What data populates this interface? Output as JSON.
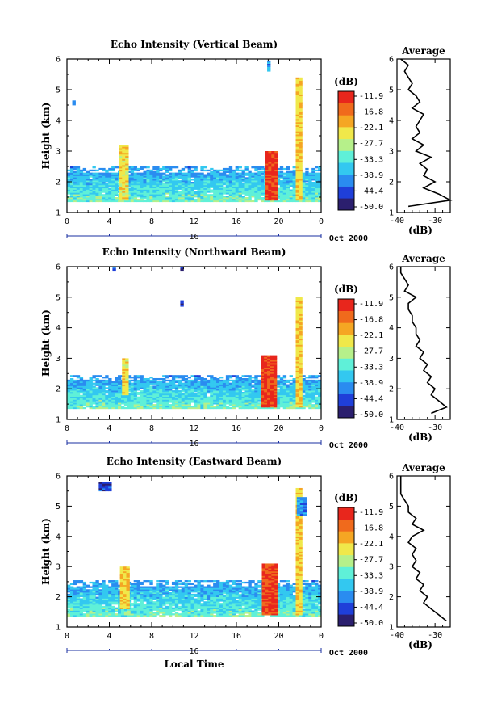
{
  "chart_data": [
    {
      "type": "heatmap",
      "title": "Echo Intensity (Vertical Beam)",
      "xlabel": "",
      "ylabel": "Height (km)",
      "x_ticks": [
        "0",
        "4",
        "8",
        "12",
        "16",
        "20",
        "0"
      ],
      "y_ticks": [
        "1",
        "2",
        "3",
        "4",
        "5",
        "6"
      ],
      "xlim": [
        0,
        24
      ],
      "ylim": [
        1,
        6
      ],
      "date_axis": {
        "day": "16",
        "month_label": "Oct 2000"
      },
      "colorbar": {
        "unit": "(dB)",
        "ticks": [
          "-11.9",
          "-16.8",
          "-22.1",
          "-27.7",
          "-33.3",
          "-38.9",
          "-44.4",
          "-50.0"
        ],
        "range": [
          -50.0,
          -11.9
        ]
      },
      "features": [
        {
          "x_start": 0.0,
          "x_end": 24.0,
          "y_bottom": 1.35,
          "y_top": 2.5,
          "value": -36
        },
        {
          "x_start": 4.9,
          "x_end": 5.6,
          "y_bottom": 1.4,
          "y_top": 3.2,
          "value": -25
        },
        {
          "x_start": 18.7,
          "x_end": 19.8,
          "y_bottom": 1.4,
          "y_top": 3.0,
          "value": -15
        },
        {
          "x_start": 21.6,
          "x_end": 22.0,
          "y_bottom": 1.4,
          "y_top": 5.4,
          "value": -24
        },
        {
          "x_start": 0.5,
          "x_end": 0.7,
          "y_bottom": 4.5,
          "y_top": 4.65,
          "value": -40
        },
        {
          "x_start": 18.9,
          "x_end": 19.1,
          "y_bottom": 5.6,
          "y_top": 5.95,
          "value": -40
        }
      ],
      "profile": {
        "title": "Average",
        "xlabel": "(dB)",
        "x_ticks": [
          "-40",
          "-30"
        ],
        "xlim": [
          -40,
          -26
        ],
        "ylim": [
          1,
          6
        ],
        "heights": [
          1.2,
          1.4,
          1.6,
          1.8,
          2.0,
          2.2,
          2.4,
          2.6,
          2.8,
          3.0,
          3.2,
          3.4,
          3.6,
          3.8,
          4.0,
          4.2,
          4.4,
          4.6,
          4.8,
          5.0,
          5.2,
          5.4,
          5.6,
          5.8,
          6.0
        ],
        "values": [
          -37,
          -26,
          -29,
          -33,
          -30,
          -33,
          -32,
          -34,
          -31,
          -35,
          -33,
          -36,
          -34,
          -35,
          -34,
          -33,
          -36,
          -34,
          -35,
          -37,
          -36,
          -37,
          -38,
          -37,
          -39
        ]
      }
    },
    {
      "type": "heatmap",
      "title": "Echo Intensity (Northward Beam)",
      "xlabel": "",
      "ylabel": "Height (km)",
      "x_ticks": [
        "0",
        "4",
        "8",
        "12",
        "16",
        "20",
        "0"
      ],
      "y_ticks": [
        "1",
        "2",
        "3",
        "4",
        "5",
        "6"
      ],
      "xlim": [
        0,
        24
      ],
      "ylim": [
        1,
        6
      ],
      "date_axis": {
        "day": "16",
        "month_label": "Oct 2000"
      },
      "colorbar": {
        "unit": "(dB)",
        "ticks": [
          "-11.9",
          "-16.8",
          "-22.1",
          "-27.7",
          "-33.3",
          "-38.9",
          "-44.4",
          "-50.0"
        ],
        "range": [
          -50.0,
          -11.9
        ]
      },
      "features": [
        {
          "x_start": 0.0,
          "x_end": 24.0,
          "y_bottom": 1.35,
          "y_top": 2.45,
          "value": -36
        },
        {
          "x_start": 5.2,
          "x_end": 5.8,
          "y_bottom": 1.8,
          "y_top": 3.0,
          "value": -25
        },
        {
          "x_start": 18.3,
          "x_end": 19.8,
          "y_bottom": 1.4,
          "y_top": 3.1,
          "value": -15
        },
        {
          "x_start": 21.6,
          "x_end": 22.0,
          "y_bottom": 1.4,
          "y_top": 5.0,
          "value": -24
        },
        {
          "x_start": 4.3,
          "x_end": 4.5,
          "y_bottom": 5.85,
          "y_top": 6.0,
          "value": -42
        },
        {
          "x_start": 10.7,
          "x_end": 10.9,
          "y_bottom": 5.85,
          "y_top": 6.0,
          "value": -46
        },
        {
          "x_start": 10.7,
          "x_end": 10.9,
          "y_bottom": 4.7,
          "y_top": 4.9,
          "value": -46
        }
      ],
      "profile": {
        "title": "Average",
        "xlabel": "(dB)",
        "x_ticks": [
          "-40",
          "-30"
        ],
        "xlim": [
          -40,
          -26
        ],
        "ylim": [
          1,
          6
        ],
        "heights": [
          1.2,
          1.4,
          1.6,
          1.8,
          2.0,
          2.2,
          2.4,
          2.6,
          2.8,
          3.0,
          3.2,
          3.4,
          3.6,
          3.8,
          4.0,
          4.2,
          4.4,
          4.6,
          4.8,
          5.0,
          5.2,
          5.4,
          5.6,
          5.8,
          6.0
        ],
        "values": [
          -31,
          -27,
          -29,
          -31,
          -30,
          -32,
          -31,
          -33,
          -32,
          -34,
          -33,
          -35,
          -34,
          -35,
          -35,
          -36,
          -36,
          -37,
          -37,
          -35,
          -38,
          -37,
          -38,
          -39,
          -39
        ]
      }
    },
    {
      "type": "heatmap",
      "title": "Echo Intensity (Eastward Beam)",
      "xlabel": "Local Time",
      "ylabel": "Height (km)",
      "x_ticks": [
        "0",
        "4",
        "8",
        "12",
        "16",
        "20",
        "0"
      ],
      "y_ticks": [
        "1",
        "2",
        "3",
        "4",
        "5",
        "6"
      ],
      "xlim": [
        0,
        24
      ],
      "ylim": [
        1,
        6
      ],
      "date_axis": {
        "day": "16",
        "month_label": "Oct 2000"
      },
      "colorbar": {
        "unit": "(dB)",
        "ticks": [
          "-11.9",
          "-16.8",
          "-22.1",
          "-27.7",
          "-33.3",
          "-38.9",
          "-44.4",
          "-50.0"
        ],
        "range": [
          -50.0,
          -11.9
        ]
      },
      "features": [
        {
          "x_start": 0.0,
          "x_end": 24.0,
          "y_bottom": 1.35,
          "y_top": 2.55,
          "value": -36
        },
        {
          "x_start": 5.0,
          "x_end": 5.7,
          "y_bottom": 1.6,
          "y_top": 3.0,
          "value": -24
        },
        {
          "x_start": 18.4,
          "x_end": 19.8,
          "y_bottom": 1.4,
          "y_top": 3.1,
          "value": -15
        },
        {
          "x_start": 21.6,
          "x_end": 22.0,
          "y_bottom": 1.4,
          "y_top": 5.6,
          "value": -24
        },
        {
          "x_start": 3.0,
          "x_end": 4.0,
          "y_bottom": 5.5,
          "y_top": 5.8,
          "value": -45
        },
        {
          "x_start": 21.7,
          "x_end": 22.4,
          "y_bottom": 4.7,
          "y_top": 5.3,
          "value": -40
        }
      ],
      "profile": {
        "title": "Average",
        "xlabel": "(dB)",
        "x_ticks": [
          "-40",
          "-30"
        ],
        "xlim": [
          -40,
          -26
        ],
        "ylim": [
          1,
          6
        ],
        "heights": [
          1.2,
          1.4,
          1.6,
          1.8,
          2.0,
          2.2,
          2.4,
          2.6,
          2.8,
          3.0,
          3.2,
          3.4,
          3.6,
          3.8,
          4.0,
          4.2,
          4.4,
          4.6,
          4.8,
          5.0,
          5.2,
          5.4,
          5.6,
          5.8,
          6.0
        ],
        "values": [
          -27,
          -29,
          -31,
          -33,
          -32,
          -34,
          -33,
          -35,
          -34,
          -36,
          -35,
          -36,
          -35,
          -37,
          -36,
          -33,
          -36,
          -35,
          -37,
          -37,
          -38,
          -39,
          -39,
          -39,
          -39
        ]
      }
    }
  ]
}
